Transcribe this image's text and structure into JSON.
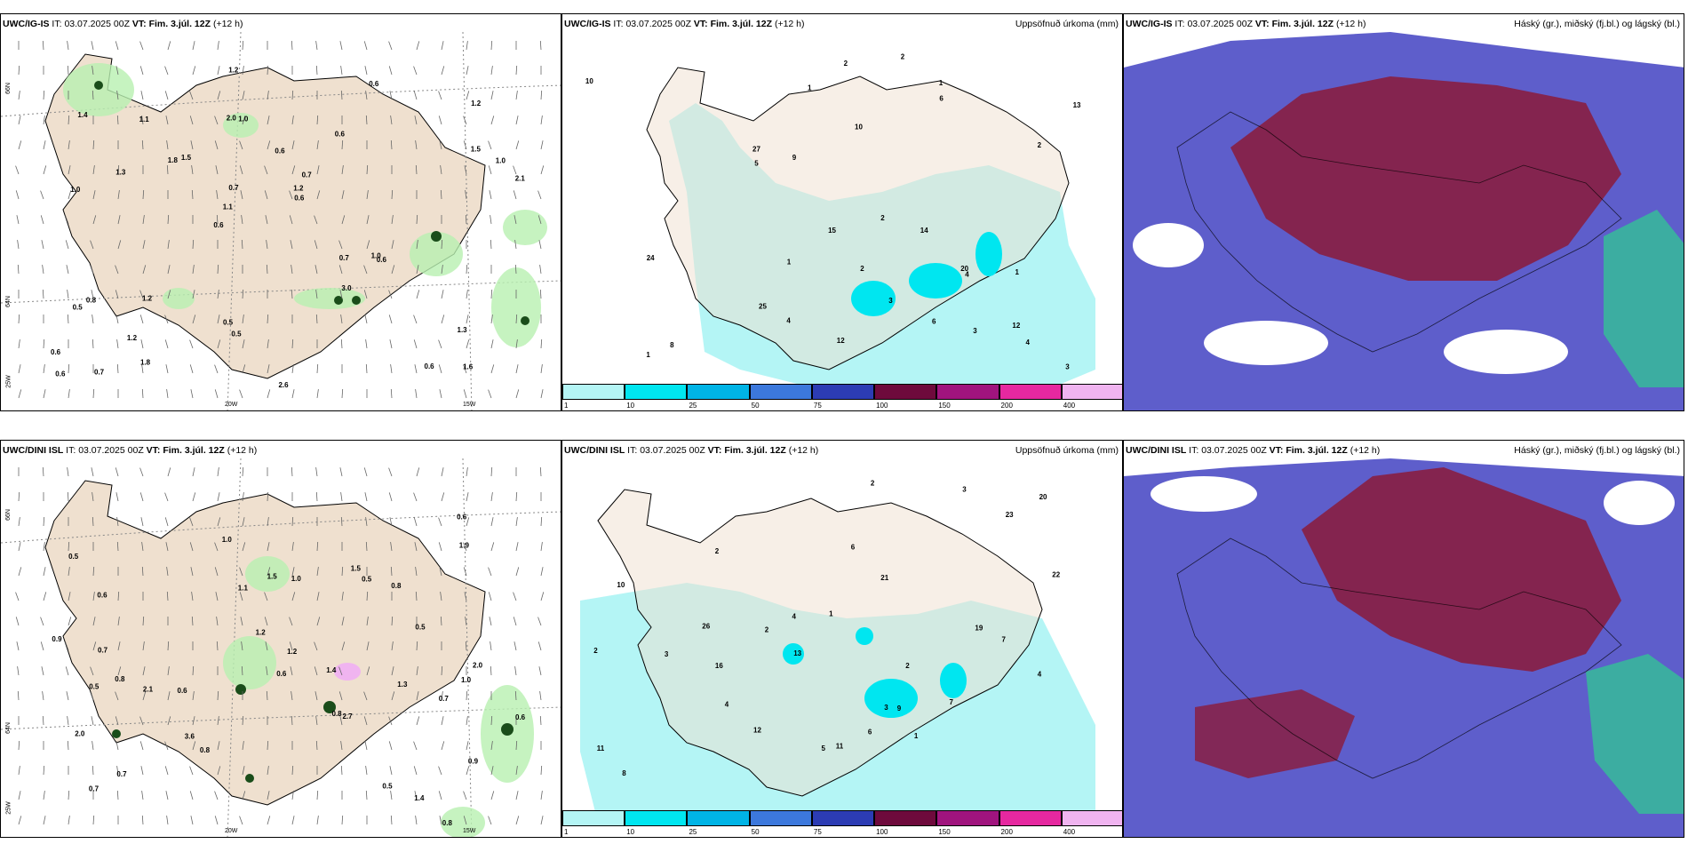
{
  "rows": [
    {
      "model_tag": "UWC/IG-IS",
      "it_label": "IT:",
      "it_value": "03.07.2025 00Z",
      "vt_label": "VT:",
      "vt_value": "Fim. 3.júl. 12Z",
      "lead": "(+12 h)",
      "panels": [
        {
          "right_label": ""
        },
        {
          "right_label": "Uppsöfnuð úrkoma (mm)"
        },
        {
          "right_label": "Háský (gr.), miðský (fj.bl.) og lágský (bl.)"
        }
      ],
      "wind_values": [
        "1.6",
        "1.0",
        "1.2",
        "0.6",
        "0.6",
        "0.7",
        "2.0",
        "0.6",
        "0.8",
        "1.5",
        "0.6",
        "1.2",
        "1.0",
        "0.7",
        "0.6",
        "1.4",
        "1.2",
        "2.1",
        "0.7",
        "1.5",
        "1.1",
        "0.5",
        "0.7",
        "1.1",
        "0.6",
        "1.2",
        "0.6",
        "1.3",
        "1.0",
        "2.6",
        "1.8",
        "1.3",
        "3.0",
        "1.8",
        "1.0",
        "1.2",
        "0.6",
        "0.5",
        "0.6",
        "0.5"
      ],
      "precip_values": [
        "1",
        "1",
        "2",
        "2",
        "1",
        "2",
        "12",
        "1",
        "3",
        "25",
        "3",
        "5",
        "4",
        "2",
        "6",
        "27",
        "20",
        "24",
        "15",
        "13",
        "10",
        "8",
        "12",
        "14",
        "4",
        "6",
        "9",
        "10",
        "2",
        "3",
        "4",
        "1"
      ],
      "axis_labels": {
        "lat_top": "66N",
        "lat_mid": "64N",
        "lon_left": "25W",
        "lon_mid": "20W",
        "lon_right": "15W"
      }
    },
    {
      "model_tag": "UWC/DINI ISL",
      "it_label": "IT:",
      "it_value": "03.07.2025 00Z",
      "vt_label": "VT:",
      "vt_value": "Fim. 3.júl. 12Z",
      "lead": "(+12 h)",
      "panels": [
        {
          "right_label": ""
        },
        {
          "right_label": "Uppsöfnuð úrkoma (mm)"
        },
        {
          "right_label": "Háský (gr.), miðský (fj.bl.) og lágský (bl.)"
        }
      ],
      "wind_values": [
        "0.8",
        "0.8",
        "0.8",
        "0.5",
        "0.9",
        "0.6",
        "0.7",
        "0.6",
        "0.8",
        "1.5",
        "0.5",
        "1.4",
        "0.8",
        "1.0",
        "1.4",
        "2.0",
        "1.3",
        "1.2",
        "0.9",
        "0.7",
        "0.6",
        "1.0",
        "0.5",
        "0.6",
        "2.0",
        "0.7",
        "2.1",
        "0.6",
        "1.2",
        "1.9",
        "2.7",
        "0.5",
        "3.6",
        "1.5",
        "1.1",
        "0.7",
        "1.0",
        "0.5"
      ],
      "precip_values": [
        "2",
        "1",
        "1",
        "3",
        "2",
        "2",
        "11",
        "20",
        "7",
        "9",
        "13",
        "26",
        "4",
        "2",
        "6",
        "23",
        "19",
        "22",
        "21",
        "16",
        "3",
        "4",
        "8",
        "12",
        "10",
        "6",
        "11",
        "5",
        "2",
        "3",
        "4",
        "7"
      ],
      "axis_labels": {
        "lat_top": "66N",
        "lat_mid": "64N",
        "lon_left": "25W",
        "lon_mid": "20W",
        "lon_right": "15W"
      }
    }
  ],
  "colorbar": {
    "ticks": [
      "1",
      "10",
      "25",
      "50",
      "75",
      "100",
      "150",
      "200",
      "400"
    ],
    "colors": [
      "#b4f5f5",
      "#00e6f0",
      "#00b4e6",
      "#3c78dc",
      "#2c3cb4",
      "#6e0a3c",
      "#a0147e",
      "#e628a0",
      "#f0b4f0"
    ]
  },
  "colors": {
    "land": "#efe0cf",
    "green_light": "#b8f0b0",
    "green_dark": "#1a4d1a",
    "cyan_precip": "#b4f5f5",
    "cloud_blue": "#5555c8",
    "cloud_maroon": "#8b1a3a",
    "cloud_green": "#2ecf8f"
  }
}
